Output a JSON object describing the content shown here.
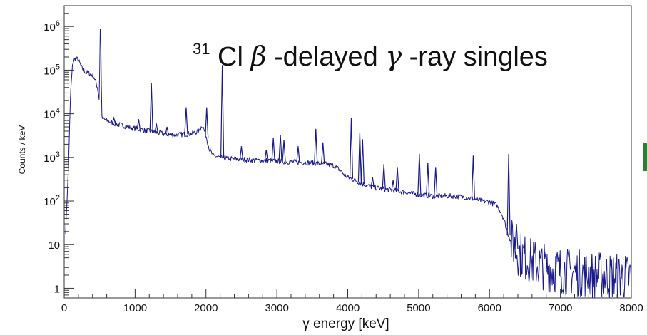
{
  "chart_data": {
    "type": "line",
    "title": {
      "mass_number": "31",
      "element": "Cl",
      "beta": "β",
      "mid": "-delayed ",
      "gamma": "γ",
      "end": "-ray singles"
    },
    "xlabel": "γ energy [keV]",
    "ylabel": "Counts / keV",
    "xlim": [
      0,
      8000
    ],
    "ylim": [
      0.6,
      3000000
    ],
    "yscale": "log",
    "x_ticks": [
      {
        "value": 0,
        "label": "0"
      },
      {
        "value": 1000,
        "label": "1000"
      },
      {
        "value": 2000,
        "label": "2000"
      },
      {
        "value": 3000,
        "label": "3000"
      },
      {
        "value": 4000,
        "label": "4000"
      },
      {
        "value": 5000,
        "label": "5000"
      },
      {
        "value": 6000,
        "label": "6000"
      },
      {
        "value": 7000,
        "label": "7000"
      },
      {
        "value": 8000,
        "label": "8000"
      }
    ],
    "y_ticks": [
      {
        "value": 1,
        "base": "1",
        "exp": ""
      },
      {
        "value": 10,
        "base": "10",
        "exp": ""
      },
      {
        "value": 100,
        "base": "10",
        "exp": "2"
      },
      {
        "value": 1000,
        "base": "10",
        "exp": "3"
      },
      {
        "value": 10000,
        "base": "10",
        "exp": "4"
      },
      {
        "value": 100000,
        "base": "10",
        "exp": "5"
      },
      {
        "value": 1000000,
        "base": "10",
        "exp": "6"
      }
    ],
    "series": [
      {
        "color": "#1a1a8c",
        "x": [
          20,
          60,
          90,
          120,
          160,
          200,
          250,
          300,
          340,
          380,
          420,
          470,
          495,
          505,
          511,
          517,
          530,
          600,
          700,
          800,
          900,
          1000,
          1100,
          1200,
          1300,
          1400,
          1500,
          1600,
          1700,
          1800,
          1900,
          1950,
          2000,
          2050,
          2100,
          2200,
          2300,
          2400,
          2500,
          2600,
          2700,
          2800,
          2900,
          3000,
          3100,
          3200,
          3300,
          3400,
          3500,
          3600,
          3700,
          3800,
          3900,
          3950,
          4000,
          4100,
          4200,
          4300,
          4400,
          4500,
          4600,
          4700,
          4800,
          4900,
          5000,
          5100,
          5200,
          5300,
          5400,
          5500,
          5600,
          5700,
          5800,
          5900,
          6000,
          6100,
          6150,
          6200,
          6250,
          6300,
          6400,
          6500,
          6600,
          6700,
          6800,
          6900,
          7000,
          7100,
          7200,
          7300,
          7400,
          7500,
          7600,
          7700,
          7800,
          7900,
          8000
        ],
        "y": [
          20,
          600,
          30000,
          150000,
          190000,
          170000,
          110000,
          90000,
          85000,
          80000,
          70000,
          40000,
          20000,
          500000,
          1500000,
          400000,
          8000,
          7000,
          6000,
          5500,
          5000,
          4600,
          4300,
          4000,
          3700,
          3500,
          3300,
          3300,
          3400,
          3500,
          4000,
          5500,
          3200,
          1500,
          1100,
          1000,
          950,
          920,
          900,
          880,
          860,
          850,
          840,
          820,
          800,
          790,
          780,
          760,
          740,
          720,
          700,
          650,
          500,
          400,
          350,
          300,
          250,
          220,
          200,
          190,
          180,
          170,
          160,
          150,
          140,
          135,
          130,
          130,
          130,
          130,
          125,
          120,
          110,
          100,
          95,
          80,
          60,
          40,
          20,
          12,
          7,
          5,
          4,
          3.5,
          3,
          2.8,
          2.6,
          2.4,
          2.3,
          2.2,
          2.1,
          2,
          2,
          1.9,
          1.9,
          1.8,
          1.8
        ],
        "peaks": [
          {
            "x": 700,
            "y": 8000
          },
          {
            "x": 1050,
            "y": 7500
          },
          {
            "x": 1230,
            "y": 50000
          },
          {
            "x": 1300,
            "y": 6000
          },
          {
            "x": 1450,
            "y": 5000
          },
          {
            "x": 1720,
            "y": 14000
          },
          {
            "x": 2010,
            "y": 14000
          },
          {
            "x": 2230,
            "y": 130000
          },
          {
            "x": 2500,
            "y": 1800
          },
          {
            "x": 2850,
            "y": 1500
          },
          {
            "x": 2950,
            "y": 2800
          },
          {
            "x": 3050,
            "y": 3300
          },
          {
            "x": 3100,
            "y": 2500
          },
          {
            "x": 3300,
            "y": 1800
          },
          {
            "x": 3550,
            "y": 4500
          },
          {
            "x": 3650,
            "y": 2200
          },
          {
            "x": 4050,
            "y": 8000
          },
          {
            "x": 4170,
            "y": 3700
          },
          {
            "x": 4210,
            "y": 2600
          },
          {
            "x": 4350,
            "y": 350
          },
          {
            "x": 4510,
            "y": 700
          },
          {
            "x": 4640,
            "y": 300
          },
          {
            "x": 4700,
            "y": 600
          },
          {
            "x": 5010,
            "y": 1200
          },
          {
            "x": 5130,
            "y": 750
          },
          {
            "x": 5240,
            "y": 600
          },
          {
            "x": 5770,
            "y": 1100
          },
          {
            "x": 6270,
            "y": 1200
          },
          {
            "x": 6380,
            "y": 30
          }
        ]
      }
    ]
  }
}
